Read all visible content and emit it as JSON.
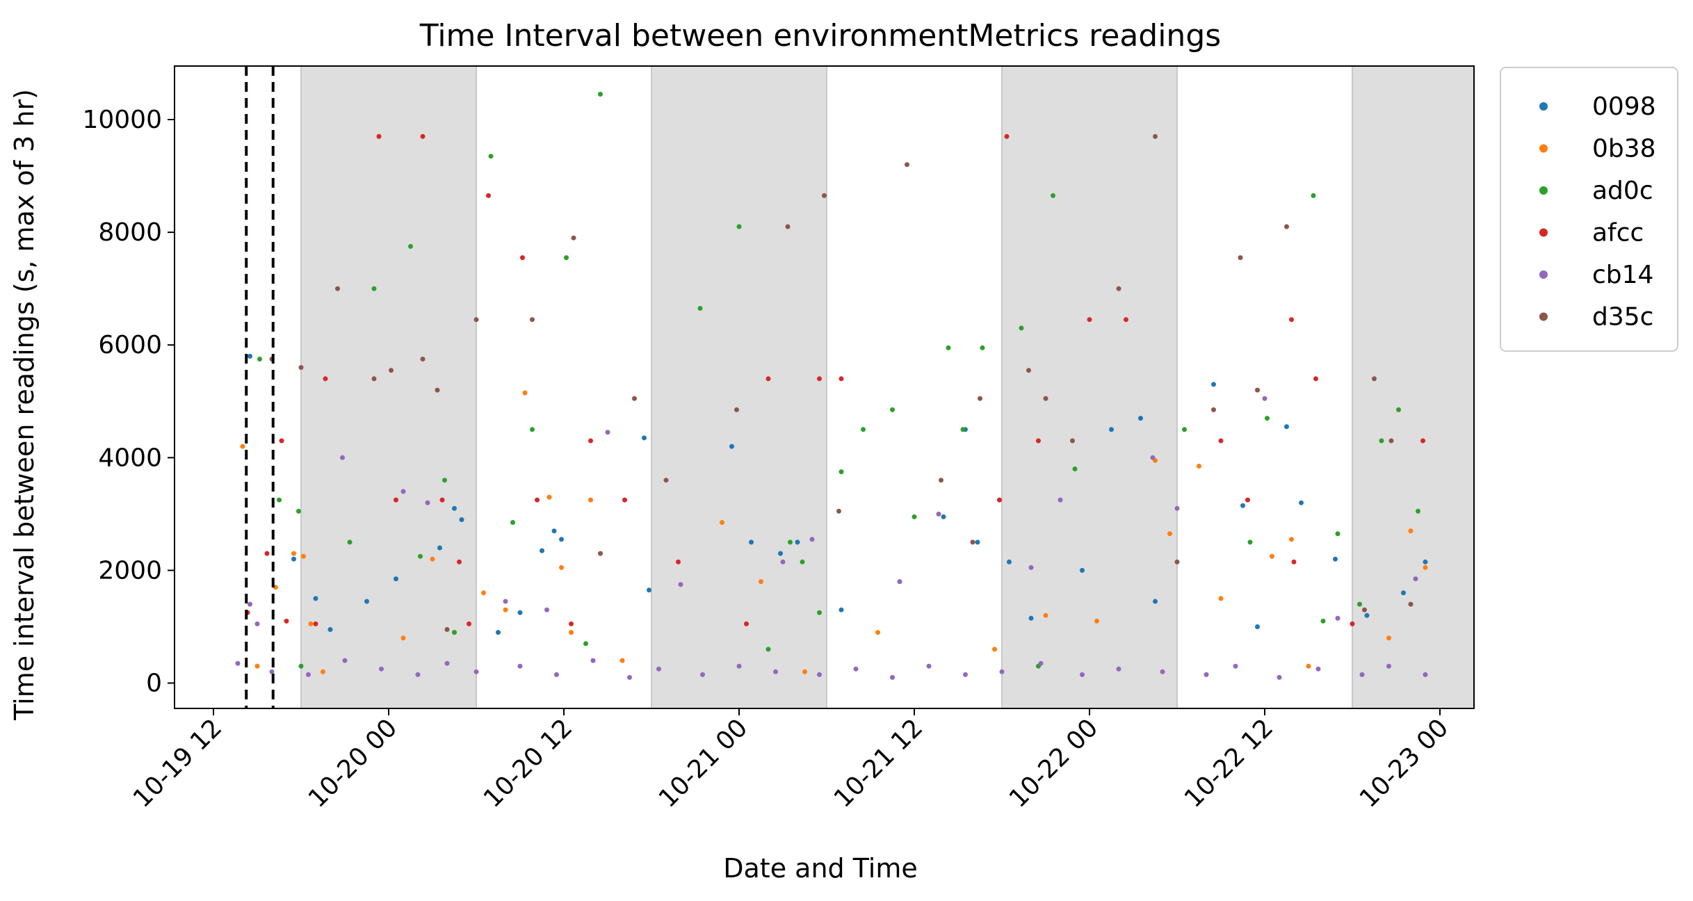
{
  "chart_data": {
    "type": "scatter",
    "title": "Time Interval between environmentMetrics readings",
    "xlabel": "Date and Time",
    "ylabel": "Time interval between readings (s, max of 3 hr)",
    "x_ticks": [
      "10-19 12",
      "10-20 00",
      "10-20 12",
      "10-21 00",
      "10-21 12",
      "10-22 00",
      "10-22 12",
      "10-23 00"
    ],
    "x_tick_values": [
      "2024-10-19 12:00",
      "2024-10-20 00:00",
      "2024-10-20 12:00",
      "2024-10-21 00:00",
      "2024-10-21 12:00",
      "2024-10-22 00:00",
      "2024-10-22 12:00",
      "2024-10-23 00:00"
    ],
    "xlim": [
      "2024-10-19 09:20",
      "2024-10-23 02:20"
    ],
    "y_ticks": [
      "0",
      "2000",
      "4000",
      "6000",
      "8000",
      "10000"
    ],
    "y_tick_values": [
      0,
      2000,
      4000,
      6000,
      8000,
      10000
    ],
    "ylim": [
      -450,
      10950
    ],
    "grid": false,
    "legend_position": "outside-top-right",
    "night_shading": [
      {
        "start": "2024-10-19 18:00",
        "end": "2024-10-20 06:00"
      },
      {
        "start": "2024-10-20 18:00",
        "end": "2024-10-21 06:00"
      },
      {
        "start": "2024-10-21 18:00",
        "end": "2024-10-22 06:00"
      },
      {
        "start": "2024-10-22 18:00",
        "end": "2024-10-23 02:20"
      }
    ],
    "vertical_lines": [
      "2024-10-19 14:15",
      "2024-10-19 16:05"
    ],
    "series": [
      {
        "name": "0098",
        "color": "#1f77b4",
        "points": [
          [
            "2024-10-19 14:30",
            5800
          ],
          [
            "2024-10-19 17:30",
            2200
          ],
          [
            "2024-10-19 19:00",
            1500
          ],
          [
            "2024-10-19 22:30",
            1450
          ],
          [
            "2024-10-20 00:30",
            1850
          ],
          [
            "2024-10-20 03:30",
            2400
          ],
          [
            "2024-10-20 04:30",
            3100
          ],
          [
            "2024-10-20 05:00",
            2900
          ],
          [
            "2024-10-20 10:30",
            2350
          ],
          [
            "2024-10-20 11:20",
            2700
          ],
          [
            "2024-10-20 11:50",
            2550
          ],
          [
            "2024-10-20 17:30",
            4350
          ],
          [
            "2024-10-20 17:50",
            1650
          ],
          [
            "2024-10-20 23:30",
            4200
          ],
          [
            "2024-10-21 00:50",
            2500
          ],
          [
            "2024-10-21 02:50",
            2300
          ],
          [
            "2024-10-21 04:00",
            2500
          ],
          [
            "2024-10-21 14:00",
            2950
          ],
          [
            "2024-10-21 15:30",
            4500
          ],
          [
            "2024-10-21 16:20",
            2500
          ],
          [
            "2024-10-21 18:30",
            2150
          ],
          [
            "2024-10-21 23:30",
            2000
          ],
          [
            "2024-10-22 01:30",
            4500
          ],
          [
            "2024-10-22 03:30",
            4700
          ],
          [
            "2024-10-22 04:30",
            1450
          ],
          [
            "2024-10-22 08:30",
            5300
          ],
          [
            "2024-10-22 10:30",
            3150
          ],
          [
            "2024-10-22 13:30",
            4550
          ],
          [
            "2024-10-22 14:30",
            3200
          ],
          [
            "2024-10-22 16:50",
            2200
          ],
          [
            "2024-10-22 23:00",
            2150
          ],
          [
            "2024-10-19 20:00",
            950
          ],
          [
            "2024-10-20 07:30",
            900
          ],
          [
            "2024-10-20 09:00",
            1250
          ],
          [
            "2024-10-21 07:00",
            1300
          ],
          [
            "2024-10-21 20:00",
            1150
          ],
          [
            "2024-10-22 11:30",
            1000
          ],
          [
            "2024-10-22 19:00",
            1200
          ],
          [
            "2024-10-22 21:30",
            1600
          ]
        ]
      },
      {
        "name": "0b38",
        "color": "#ff7f0e",
        "points": [
          [
            "2024-10-19 14:00",
            4200
          ],
          [
            "2024-10-19 16:15",
            1700
          ],
          [
            "2024-10-19 17:30",
            2300
          ],
          [
            "2024-10-19 18:10",
            2250
          ],
          [
            "2024-10-19 18:40",
            1050
          ],
          [
            "2024-10-20 03:00",
            2200
          ],
          [
            "2024-10-20 09:20",
            5150
          ],
          [
            "2024-10-20 11:00",
            3300
          ],
          [
            "2024-10-20 11:50",
            2050
          ],
          [
            "2024-10-20 13:50",
            3250
          ],
          [
            "2024-10-20 22:50",
            2850
          ],
          [
            "2024-10-22 04:30",
            3950
          ],
          [
            "2024-10-22 05:30",
            2650
          ],
          [
            "2024-10-22 07:30",
            3850
          ],
          [
            "2024-10-22 12:30",
            2250
          ],
          [
            "2024-10-22 13:50",
            2550
          ],
          [
            "2024-10-22 22:00",
            2700
          ],
          [
            "2024-10-22 23:00",
            2050
          ],
          [
            "2024-10-19 15:00",
            300
          ],
          [
            "2024-10-19 19:30",
            200
          ],
          [
            "2024-10-20 01:00",
            800
          ],
          [
            "2024-10-20 06:30",
            1600
          ],
          [
            "2024-10-20 08:00",
            1300
          ],
          [
            "2024-10-20 12:30",
            900
          ],
          [
            "2024-10-20 16:00",
            400
          ],
          [
            "2024-10-21 01:30",
            1800
          ],
          [
            "2024-10-21 04:30",
            200
          ],
          [
            "2024-10-21 09:30",
            900
          ],
          [
            "2024-10-21 17:30",
            600
          ],
          [
            "2024-10-21 21:00",
            1200
          ],
          [
            "2024-10-22 00:30",
            1100
          ],
          [
            "2024-10-22 09:00",
            1500
          ],
          [
            "2024-10-22 15:00",
            300
          ],
          [
            "2024-10-22 20:30",
            800
          ]
        ]
      },
      {
        "name": "ad0c",
        "color": "#2ca02c",
        "points": [
          [
            "2024-10-19 15:10",
            5750
          ],
          [
            "2024-10-19 16:30",
            3250
          ],
          [
            "2024-10-19 17:50",
            3050
          ],
          [
            "2024-10-19 21:20",
            2500
          ],
          [
            "2024-10-19 23:00",
            7000
          ],
          [
            "2024-10-20 01:30",
            7750
          ],
          [
            "2024-10-20 02:10",
            2250
          ],
          [
            "2024-10-20 03:50",
            3600
          ],
          [
            "2024-10-20 07:00",
            9350
          ],
          [
            "2024-10-20 08:30",
            2850
          ],
          [
            "2024-10-20 09:50",
            4500
          ],
          [
            "2024-10-20 12:10",
            7550
          ],
          [
            "2024-10-20 14:30",
            10450
          ],
          [
            "2024-10-20 21:20",
            6650
          ],
          [
            "2024-10-21 00:00",
            8100
          ],
          [
            "2024-10-21 03:30",
            2500
          ],
          [
            "2024-10-21 04:20",
            2150
          ],
          [
            "2024-10-21 07:00",
            3750
          ],
          [
            "2024-10-21 08:30",
            4500
          ],
          [
            "2024-10-21 10:30",
            4850
          ],
          [
            "2024-10-21 12:00",
            2950
          ],
          [
            "2024-10-21 14:20",
            5950
          ],
          [
            "2024-10-21 15:20",
            4500
          ],
          [
            "2024-10-21 16:40",
            5950
          ],
          [
            "2024-10-21 19:20",
            6300
          ],
          [
            "2024-10-21 21:30",
            8650
          ],
          [
            "2024-10-21 23:00",
            3800
          ],
          [
            "2024-10-22 06:30",
            4500
          ],
          [
            "2024-10-22 11:00",
            2500
          ],
          [
            "2024-10-22 12:10",
            4700
          ],
          [
            "2024-10-22 15:20",
            8650
          ],
          [
            "2024-10-22 17:00",
            2650
          ],
          [
            "2024-10-22 18:30",
            1400
          ],
          [
            "2024-10-22 20:00",
            4300
          ],
          [
            "2024-10-22 21:10",
            4850
          ],
          [
            "2024-10-22 22:30",
            3050
          ],
          [
            "2024-10-19 18:00",
            300
          ],
          [
            "2024-10-20 04:30",
            900
          ],
          [
            "2024-10-20 13:30",
            700
          ],
          [
            "2024-10-21 02:00",
            600
          ],
          [
            "2024-10-21 05:30",
            1250
          ],
          [
            "2024-10-21 20:30",
            300
          ],
          [
            "2024-10-22 16:00",
            1100
          ]
        ]
      },
      {
        "name": "afcc",
        "color": "#d62728",
        "points": [
          [
            "2024-10-19 14:20",
            1250
          ],
          [
            "2024-10-19 15:40",
            2300
          ],
          [
            "2024-10-19 16:40",
            4300
          ],
          [
            "2024-10-19 17:00",
            1100
          ],
          [
            "2024-10-19 19:40",
            5400
          ],
          [
            "2024-10-19 23:20",
            9700
          ],
          [
            "2024-10-20 00:30",
            3250
          ],
          [
            "2024-10-20 02:20",
            9700
          ],
          [
            "2024-10-20 03:40",
            3250
          ],
          [
            "2024-10-20 04:50",
            2150
          ],
          [
            "2024-10-20 06:50",
            8650
          ],
          [
            "2024-10-20 09:10",
            7550
          ],
          [
            "2024-10-20 10:10",
            3250
          ],
          [
            "2024-10-20 12:30",
            1050
          ],
          [
            "2024-10-20 13:50",
            4300
          ],
          [
            "2024-10-20 16:10",
            3250
          ],
          [
            "2024-10-20 19:50",
            2150
          ],
          [
            "2024-10-21 02:00",
            5400
          ],
          [
            "2024-10-21 05:30",
            5400
          ],
          [
            "2024-10-21 07:00",
            5400
          ],
          [
            "2024-10-21 17:50",
            3250
          ],
          [
            "2024-10-21 18:20",
            9700
          ],
          [
            "2024-10-21 20:30",
            4300
          ],
          [
            "2024-10-22 00:00",
            6450
          ],
          [
            "2024-10-22 02:30",
            6450
          ],
          [
            "2024-10-22 09:00",
            4300
          ],
          [
            "2024-10-22 10:50",
            3250
          ],
          [
            "2024-10-22 13:50",
            6450
          ],
          [
            "2024-10-22 15:30",
            5400
          ],
          [
            "2024-10-22 22:50",
            4300
          ],
          [
            "2024-10-19 19:00",
            1050
          ],
          [
            "2024-10-20 05:30",
            1050
          ],
          [
            "2024-10-21 00:30",
            1050
          ],
          [
            "2024-10-22 14:00",
            2150
          ],
          [
            "2024-10-22 18:00",
            1050
          ]
        ]
      },
      {
        "name": "cb14",
        "color": "#9467bd",
        "points": [
          [
            "2024-10-19 14:30",
            1400
          ],
          [
            "2024-10-19 15:00",
            1050
          ],
          [
            "2024-10-19 20:50",
            4000
          ],
          [
            "2024-10-20 01:00",
            3400
          ],
          [
            "2024-10-20 02:40",
            3200
          ],
          [
            "2024-10-20 08:00",
            1450
          ],
          [
            "2024-10-20 10:50",
            1300
          ],
          [
            "2024-10-20 15:00",
            4450
          ],
          [
            "2024-10-20 20:00",
            1750
          ],
          [
            "2024-10-21 03:00",
            2150
          ],
          [
            "2024-10-21 05:00",
            2550
          ],
          [
            "2024-10-21 11:00",
            1800
          ],
          [
            "2024-10-21 13:40",
            3000
          ],
          [
            "2024-10-21 20:00",
            2050
          ],
          [
            "2024-10-21 22:00",
            3250
          ],
          [
            "2024-10-22 04:20",
            4000
          ],
          [
            "2024-10-22 06:00",
            3100
          ],
          [
            "2024-10-22 12:00",
            5050
          ],
          [
            "2024-10-22 17:00",
            1150
          ],
          [
            "2024-10-22 22:20",
            1850
          ],
          [
            "2024-10-19 13:40",
            350
          ],
          [
            "2024-10-19 16:00",
            200
          ],
          [
            "2024-10-19 18:30",
            150
          ],
          [
            "2024-10-19 21:00",
            400
          ],
          [
            "2024-10-19 23:30",
            250
          ],
          [
            "2024-10-20 02:00",
            150
          ],
          [
            "2024-10-20 04:00",
            350
          ],
          [
            "2024-10-20 06:00",
            200
          ],
          [
            "2024-10-20 09:00",
            300
          ],
          [
            "2024-10-20 11:30",
            150
          ],
          [
            "2024-10-20 14:00",
            400
          ],
          [
            "2024-10-20 16:30",
            100
          ],
          [
            "2024-10-20 18:30",
            250
          ],
          [
            "2024-10-20 21:30",
            150
          ],
          [
            "2024-10-21 00:00",
            300
          ],
          [
            "2024-10-21 02:30",
            200
          ],
          [
            "2024-10-21 05:30",
            150
          ],
          [
            "2024-10-21 08:00",
            250
          ],
          [
            "2024-10-21 10:30",
            100
          ],
          [
            "2024-10-21 13:00",
            300
          ],
          [
            "2024-10-21 15:30",
            150
          ],
          [
            "2024-10-21 18:00",
            200
          ],
          [
            "2024-10-21 20:40",
            350
          ],
          [
            "2024-10-21 23:30",
            150
          ],
          [
            "2024-10-22 02:00",
            250
          ],
          [
            "2024-10-22 05:00",
            200
          ],
          [
            "2024-10-22 08:00",
            150
          ],
          [
            "2024-10-22 10:00",
            300
          ],
          [
            "2024-10-22 13:00",
            100
          ],
          [
            "2024-10-22 15:40",
            250
          ],
          [
            "2024-10-22 18:40",
            150
          ],
          [
            "2024-10-22 20:30",
            300
          ],
          [
            "2024-10-22 23:00",
            150
          ]
        ]
      },
      {
        "name": "d35c",
        "color": "#8c564b",
        "points": [
          [
            "2024-10-19 16:00",
            5750
          ],
          [
            "2024-10-19 18:00",
            5600
          ],
          [
            "2024-10-19 20:30",
            7000
          ],
          [
            "2024-10-19 23:00",
            5400
          ],
          [
            "2024-10-20 00:10",
            5550
          ],
          [
            "2024-10-20 02:20",
            5750
          ],
          [
            "2024-10-20 03:20",
            5200
          ],
          [
            "2024-10-20 06:00",
            6450
          ],
          [
            "2024-10-20 09:50",
            6450
          ],
          [
            "2024-10-20 12:40",
            7900
          ],
          [
            "2024-10-20 16:50",
            5050
          ],
          [
            "2024-10-20 19:00",
            3600
          ],
          [
            "2024-10-20 23:50",
            4850
          ],
          [
            "2024-10-21 03:20",
            8100
          ],
          [
            "2024-10-21 05:50",
            8650
          ],
          [
            "2024-10-21 06:50",
            3050
          ],
          [
            "2024-10-21 11:30",
            9200
          ],
          [
            "2024-10-21 13:50",
            3600
          ],
          [
            "2024-10-21 16:30",
            5050
          ],
          [
            "2024-10-21 19:50",
            5550
          ],
          [
            "2024-10-21 21:00",
            5050
          ],
          [
            "2024-10-21 22:50",
            4300
          ],
          [
            "2024-10-22 02:00",
            7000
          ],
          [
            "2024-10-22 04:30",
            9700
          ],
          [
            "2024-10-22 08:30",
            4850
          ],
          [
            "2024-10-22 10:20",
            7550
          ],
          [
            "2024-10-22 11:30",
            5200
          ],
          [
            "2024-10-22 13:30",
            8100
          ],
          [
            "2024-10-22 18:50",
            1300
          ],
          [
            "2024-10-22 19:30",
            5400
          ],
          [
            "2024-10-22 20:40",
            4300
          ],
          [
            "2024-10-22 22:00",
            1400
          ],
          [
            "2024-10-20 04:00",
            950
          ],
          [
            "2024-10-20 14:30",
            2300
          ],
          [
            "2024-10-21 16:00",
            2500
          ],
          [
            "2024-10-22 06:00",
            2150
          ]
        ]
      }
    ]
  }
}
